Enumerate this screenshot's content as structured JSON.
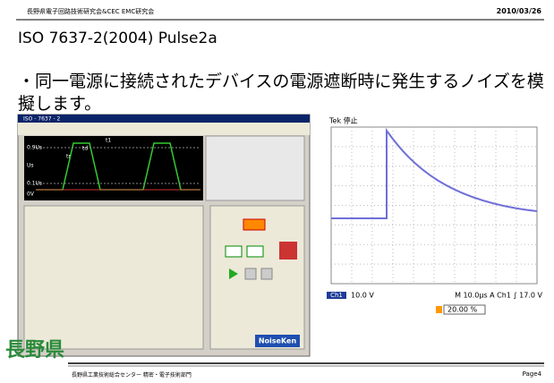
{
  "header": {
    "org": "長野県電子回路技術研究会&CEC EMC研究会",
    "date": "2010/03/26"
  },
  "title": "ISO 7637-2(2004) Pulse2a",
  "bullet": "・同一電源に接続されたデバイスの電源遮断時に発生するノイズを模擬します。",
  "software": {
    "window_title": "ISO - 7637 - 2",
    "labels": [
      "t1",
      "td",
      "tr",
      "0.9Us",
      "0.1Us",
      "Us",
      "0V"
    ],
    "brand": "NoiseKen"
  },
  "scope": {
    "status": "Tek 停止",
    "channel": "Ch1",
    "scale": "10.0 V",
    "timebase": "M 10.0µs  A  Ch1  ∫  17.0 V",
    "position": "20.00 %"
  },
  "footer": {
    "logo": "長野県",
    "org": "長野県工業技術総合センター 精密・電子技術部門",
    "page": "Page4"
  }
}
